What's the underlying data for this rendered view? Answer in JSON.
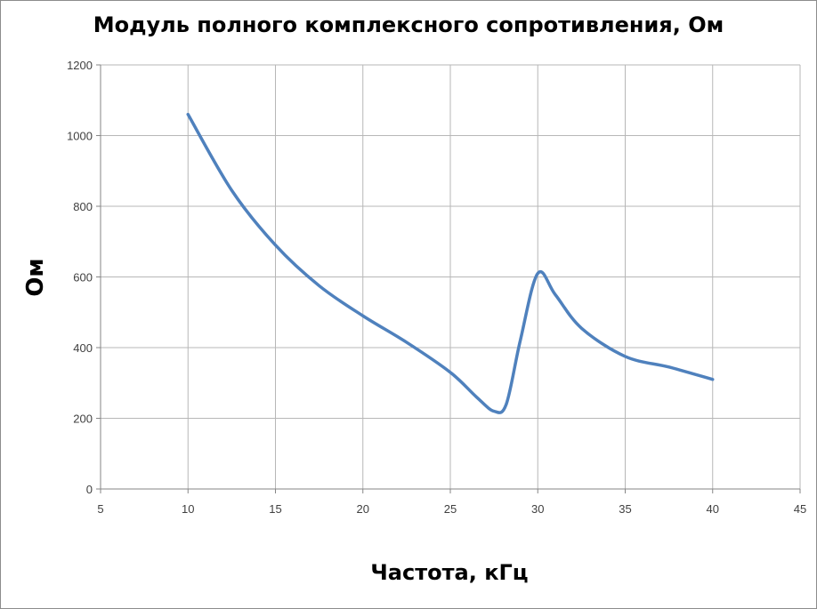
{
  "chart_data": {
    "type": "line",
    "title": "Модуль полного комплексного сопротивления, Ом",
    "xlabel": "Частота, кГц",
    "ylabel": "Ом",
    "xlim": [
      5,
      45
    ],
    "ylim": [
      0,
      1200
    ],
    "x_ticks": [
      "5",
      "10",
      "15",
      "20",
      "25",
      "30",
      "35",
      "40",
      "45"
    ],
    "y_ticks": [
      "0",
      "200",
      "400",
      "600",
      "800",
      "1000",
      "1200"
    ],
    "grid": true,
    "legend": "none",
    "series": [
      {
        "color": "#4f81bd",
        "x": [
          10,
          12.5,
          15,
          17.5,
          20,
          22.5,
          25,
          26.5,
          27.5,
          28.2,
          29,
          30,
          31,
          32.5,
          35,
          37.5,
          40
        ],
        "y": [
          1060,
          845,
          690,
          575,
          490,
          415,
          330,
          260,
          220,
          240,
          420,
          610,
          550,
          455,
          375,
          345,
          310
        ]
      }
    ]
  }
}
